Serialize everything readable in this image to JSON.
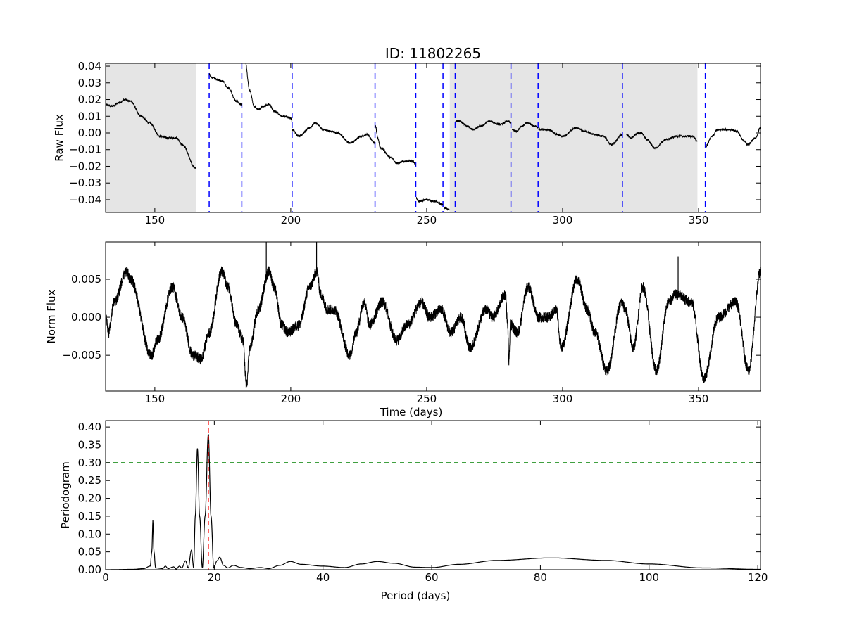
{
  "chart_data": [
    {
      "type": "line",
      "title": "ID: 11802265",
      "xlabel": "",
      "ylabel": "Raw Flux",
      "xlim": [
        131.9,
        372.8
      ],
      "ylim": [
        -0.0476,
        0.0417
      ],
      "xticks": [
        150,
        200,
        250,
        300,
        350
      ],
      "yticks": [
        -0.04,
        -0.03,
        -0.02,
        -0.01,
        0.0,
        0.01,
        0.02,
        0.03,
        0.04
      ],
      "ytick_labels": [
        "−0.04",
        "−0.03",
        "−0.02",
        "−0.01",
        "0.00",
        "0.01",
        "0.02",
        "0.03",
        "0.04"
      ],
      "shaded_regions": [
        [
          131.9,
          165.2
        ],
        [
          258.5,
          349.6
        ]
      ],
      "shade_color": "#e5e5e5",
      "quarter_boundaries": [
        170,
        182,
        200.5,
        231,
        246,
        256,
        260.5,
        281,
        291,
        322,
        352.5
      ],
      "boundary_color": "#0000ff",
      "line_color": "#000000",
      "segments": [
        [
          [
            132,
            0.017
          ],
          [
            134,
            0.016
          ],
          [
            137,
            0.018
          ],
          [
            139,
            0.02
          ],
          [
            141,
            0.019
          ],
          [
            145,
            0.01
          ],
          [
            148,
            0.006
          ],
          [
            152,
            -0.002
          ],
          [
            155,
            -0.003
          ],
          [
            158,
            -0.003
          ],
          [
            160,
            -0.007
          ],
          [
            165,
            -0.021
          ]
        ],
        [
          [
            170,
            0.035
          ],
          [
            171,
            0.033
          ],
          [
            175,
            0.031
          ],
          [
            177,
            0.027
          ],
          [
            180,
            0.019
          ],
          [
            182,
            0.017
          ]
        ],
        [
          [
            183,
            0.045
          ],
          [
            185,
            0.025
          ],
          [
            186.5,
            0.016
          ],
          [
            188,
            0.014
          ],
          [
            190,
            0.016
          ],
          [
            192,
            0.017
          ],
          [
            194,
            0.013
          ],
          [
            197,
            0.01
          ],
          [
            200,
            0.009
          ],
          [
            200.5,
            0.007
          ]
        ],
        [
          [
            200.6,
            0.002
          ],
          [
            203,
            -0.002
          ],
          [
            207,
            0.003
          ],
          [
            209,
            0.006
          ],
          [
            212,
            0.002
          ],
          [
            215,
            0.001
          ],
          [
            217,
            0.0
          ],
          [
            222,
            -0.006
          ],
          [
            226,
            -0.002
          ],
          [
            228,
            -0.001
          ],
          [
            231,
            -0.006
          ]
        ],
        [
          [
            231.2,
            0.004
          ],
          [
            232,
            -0.003
          ],
          [
            233,
            -0.009
          ],
          [
            237,
            -0.015
          ],
          [
            239,
            -0.018
          ],
          [
            242,
            -0.017
          ],
          [
            245,
            -0.017
          ],
          [
            246,
            -0.019
          ]
        ],
        [
          [
            246.2,
            -0.039
          ],
          [
            247,
            -0.041
          ],
          [
            250,
            -0.04
          ],
          [
            253,
            -0.041
          ],
          [
            256,
            -0.043
          ]
        ],
        [
          [
            256.5,
            -0.045
          ],
          [
            258.3,
            -0.046
          ]
        ],
        [
          [
            260.6,
            0.007
          ],
          [
            262,
            0.007
          ],
          [
            265,
            0.004
          ],
          [
            267,
            0.002
          ],
          [
            270,
            0.004
          ],
          [
            273,
            0.007
          ],
          [
            277,
            0.005
          ],
          [
            280,
            0.007
          ],
          [
            281,
            0.006
          ]
        ],
        [
          [
            281.5,
            0.002
          ],
          [
            283,
            0.001
          ],
          [
            285,
            0.004
          ],
          [
            287,
            0.006
          ],
          [
            290,
            0.004
          ],
          [
            291,
            0.003
          ]
        ],
        [
          [
            291.2,
            0.002
          ],
          [
            295,
            0.002
          ],
          [
            298,
            -0.001
          ],
          [
            300,
            -0.002
          ],
          [
            305,
            0.003
          ],
          [
            308,
            0.001
          ],
          [
            312,
            -0.001
          ],
          [
            315,
            -0.002
          ],
          [
            318,
            -0.007
          ],
          [
            322,
            -0.001
          ]
        ],
        [
          [
            323.5,
            -0.001
          ],
          [
            325,
            -0.003
          ],
          [
            328,
            0.0
          ],
          [
            329,
            0.0
          ],
          [
            331,
            -0.004
          ],
          [
            334,
            -0.009
          ],
          [
            338,
            -0.004
          ],
          [
            342,
            -0.002
          ],
          [
            345,
            -0.002
          ],
          [
            348,
            -0.002
          ],
          [
            349.5,
            -0.005
          ]
        ],
        [
          [
            352.6,
            -0.008
          ],
          [
            355,
            -0.002
          ],
          [
            357,
            0.002
          ],
          [
            362,
            0.002
          ],
          [
            364,
            0.001
          ],
          [
            367,
            -0.005
          ],
          [
            368,
            -0.007
          ],
          [
            371,
            -0.003
          ],
          [
            373,
            0.004
          ]
        ]
      ]
    },
    {
      "type": "line",
      "xlabel": "Time (days)",
      "ylabel": "Norm Flux",
      "xlim": [
        131.9,
        372.8
      ],
      "ylim": [
        -0.0097,
        0.0099
      ],
      "xticks": [
        150,
        200,
        250,
        300,
        350
      ],
      "yticks": [
        -0.005,
        0.0,
        0.005
      ],
      "ytick_labels": [
        "−0.005",
        "0.000",
        "0.005"
      ],
      "line_color": "#000000",
      "points": [
        [
          132,
          0.0
        ],
        [
          133,
          -0.002
        ],
        [
          135,
          0.002
        ],
        [
          139.6,
          0.006
        ],
        [
          141,
          0.005
        ],
        [
          148.7,
          -0.005
        ],
        [
          151,
          -0.003
        ],
        [
          156.5,
          0.004
        ],
        [
          160,
          0.0
        ],
        [
          164,
          -0.005
        ],
        [
          167,
          -0.0055
        ],
        [
          170,
          -0.002
        ],
        [
          174.6,
          0.006
        ],
        [
          177,
          0.004
        ],
        [
          180,
          -0.001
        ],
        [
          182.4,
          -0.003
        ],
        [
          183.7,
          -0.009
        ],
        [
          185,
          -0.004
        ],
        [
          188,
          0.001
        ],
        [
          192,
          0.006
        ],
        [
          194,
          0.004
        ],
        [
          196.6,
          -0.001
        ],
        [
          199,
          -0.002
        ],
        [
          203,
          -0.001
        ],
        [
          207,
          0.004
        ],
        [
          209.6,
          0.006
        ],
        [
          211,
          0.003
        ],
        [
          213.5,
          0.001
        ],
        [
          216,
          0.001
        ],
        [
          221.8,
          -0.005
        ],
        [
          224,
          -0.002
        ],
        [
          227,
          0.002
        ],
        [
          229,
          -0.001
        ],
        [
          233.7,
          0.002
        ],
        [
          238.9,
          -0.003
        ],
        [
          243,
          -0.001
        ],
        [
          248,
          0.002
        ],
        [
          251,
          0.0
        ],
        [
          255.4,
          0.001
        ],
        [
          258.8,
          -0.002
        ],
        [
          262.7,
          0.0
        ],
        [
          266,
          -0.004
        ],
        [
          271.8,
          0.001
        ],
        [
          274.4,
          0.0
        ],
        [
          279,
          0.003
        ],
        [
          279.8,
          -0.001
        ],
        [
          280.3,
          -0.006
        ],
        [
          280.8,
          -0.001
        ],
        [
          283.4,
          -0.002
        ],
        [
          287.3,
          0.004
        ],
        [
          291.2,
          0.0
        ],
        [
          295,
          0.0
        ],
        [
          297.7,
          0.001
        ],
        [
          299.5,
          -0.004
        ],
        [
          305.4,
          0.005
        ],
        [
          309,
          0.001
        ],
        [
          311.9,
          -0.002
        ],
        [
          316.3,
          -0.007
        ],
        [
          321.8,
          0.002
        ],
        [
          323,
          0.001
        ],
        [
          326,
          -0.004
        ],
        [
          329.5,
          0.004
        ],
        [
          334.5,
          -0.007
        ],
        [
          339,
          0.002
        ],
        [
          341.7,
          0.003
        ],
        [
          347.4,
          0.002
        ],
        [
          352,
          -0.008
        ],
        [
          357.3,
          0.0
        ],
        [
          363.7,
          0.002
        ],
        [
          368.4,
          -0.007
        ],
        [
          372.8,
          0.006
        ]
      ],
      "spikes": [
        [
          191,
          0.0099
        ],
        [
          209.5,
          0.0099
        ],
        [
          342.5,
          0.008
        ]
      ]
    },
    {
      "type": "line",
      "xlabel": "Period (days)",
      "ylabel": "Periodogram",
      "xlim": [
        0,
        120.5
      ],
      "ylim": [
        0,
        0.418
      ],
      "xticks": [
        0,
        20,
        40,
        60,
        80,
        100,
        120
      ],
      "yticks": [
        0.0,
        0.05,
        0.1,
        0.15,
        0.2,
        0.25,
        0.3,
        0.35,
        0.4
      ],
      "ytick_labels": [
        "0.00",
        "0.05",
        "0.10",
        "0.15",
        "0.20",
        "0.25",
        "0.30",
        "0.35",
        "0.40"
      ],
      "line_color": "#000000",
      "best_period": 18.9,
      "best_period_color": "#ff0000",
      "threshold": 0.3,
      "threshold_color": "#008000",
      "points": [
        [
          0,
          0
        ],
        [
          5,
          0.001
        ],
        [
          7,
          0.003
        ],
        [
          8.2,
          0.01
        ],
        [
          8.5,
          0.05
        ],
        [
          8.7,
          0.138
        ],
        [
          8.9,
          0.05
        ],
        [
          9.2,
          0.005
        ],
        [
          10.5,
          0.003
        ],
        [
          11,
          0.01
        ],
        [
          11.5,
          0.003
        ],
        [
          12.5,
          0.008
        ],
        [
          13,
          0.002
        ],
        [
          13.6,
          0.01
        ],
        [
          14,
          0.005
        ],
        [
          14.7,
          0.025
        ],
        [
          15.2,
          0.005
        ],
        [
          15.8,
          0.055
        ],
        [
          16.2,
          0.005
        ],
        [
          16.5,
          0.15
        ],
        [
          16.9,
          0.34
        ],
        [
          17.3,
          0.15
        ],
        [
          17.8,
          0.005
        ],
        [
          18.3,
          0.15
        ],
        [
          18.9,
          0.38
        ],
        [
          19.4,
          0.15
        ],
        [
          19.9,
          0.005
        ],
        [
          20.5,
          0.025
        ],
        [
          21,
          0.035
        ],
        [
          21.7,
          0.012
        ],
        [
          22.5,
          0.005
        ],
        [
          23.5,
          0.012
        ],
        [
          25,
          0.006
        ],
        [
          26.5,
          0.003
        ],
        [
          28.5,
          0.006
        ],
        [
          30,
          0.003
        ],
        [
          32,
          0.012
        ],
        [
          34,
          0.023
        ],
        [
          36,
          0.015
        ],
        [
          40,
          0.01
        ],
        [
          44,
          0.006
        ],
        [
          47,
          0.016
        ],
        [
          50,
          0.023
        ],
        [
          53,
          0.018
        ],
        [
          57,
          0.007
        ],
        [
          60,
          0.006
        ],
        [
          65,
          0.015
        ],
        [
          72,
          0.026
        ],
        [
          82,
          0.033
        ],
        [
          92,
          0.026
        ],
        [
          100,
          0.016
        ],
        [
          110,
          0.005
        ],
        [
          120,
          0.001
        ]
      ]
    }
  ]
}
